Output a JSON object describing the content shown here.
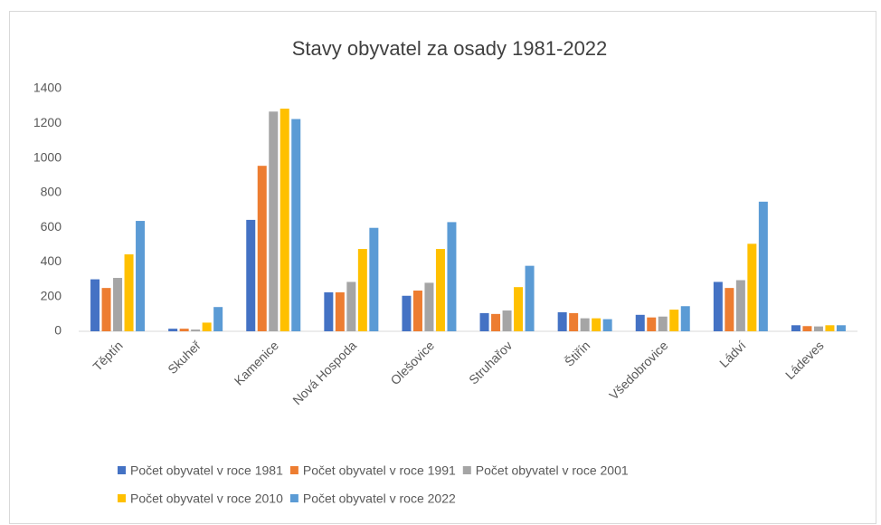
{
  "chart_data": {
    "type": "bar",
    "title": "Stavy obyvatel za osady 1981-2022",
    "categories": [
      "Těptín",
      "Skuheř",
      "Kamenice",
      "Nová Hospoda",
      "Olešovice",
      "Struhařov",
      "Štiřín",
      "Všedobrovice",
      "Ládví",
      "Ládeves"
    ],
    "series": [
      {
        "name": "Počet obyvatel v roce 1981",
        "color": "#4472c4",
        "values": [
          300,
          15,
          643,
          225,
          205,
          105,
          110,
          95,
          285,
          35
        ]
      },
      {
        "name": "Počet obyvatel v roce 1991",
        "color": "#ed7d31",
        "values": [
          250,
          15,
          955,
          225,
          235,
          100,
          105,
          80,
          250,
          30
        ]
      },
      {
        "name": "Počet obyvatel v roce 2001",
        "color": "#a5a5a5",
        "values": [
          308,
          10,
          1268,
          285,
          280,
          120,
          75,
          85,
          295,
          28
        ]
      },
      {
        "name": "Počet obyvatel v roce 2010",
        "color": "#ffc000",
        "values": [
          444,
          50,
          1285,
          475,
          475,
          255,
          75,
          125,
          505,
          35
        ]
      },
      {
        "name": "Počet obyvatel v roce 2022",
        "color": "#5b9bd5",
        "values": [
          637,
          140,
          1225,
          597,
          630,
          378,
          70,
          145,
          748,
          35
        ]
      }
    ],
    "ylim": [
      0,
      1400
    ],
    "yticks": [
      0,
      200,
      400,
      600,
      800,
      1000,
      1200,
      1400
    ],
    "grid": false
  }
}
